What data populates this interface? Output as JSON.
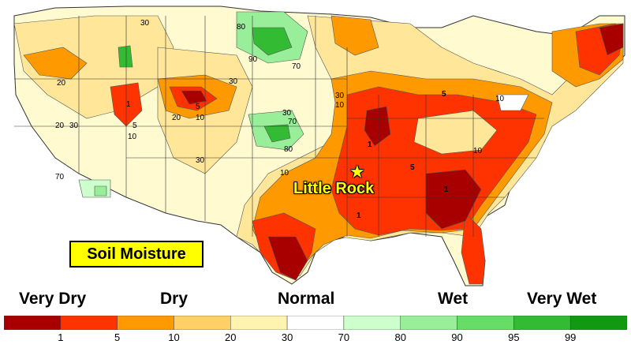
{
  "title": "Soil Moisture",
  "city": {
    "name": "Little Rock",
    "marker_icon": "star-icon"
  },
  "categories": [
    {
      "label": "Very Dry",
      "id": "very-dry"
    },
    {
      "label": "Dry",
      "id": "dry"
    },
    {
      "label": "Normal",
      "id": "normal"
    },
    {
      "label": "Wet",
      "id": "wet"
    },
    {
      "label": "Very Wet",
      "id": "very-wet"
    }
  ],
  "legend": {
    "colors": [
      "#a80000",
      "#ff3300",
      "#ff9900",
      "#ffd066",
      "#fff3b0",
      "#ffffff",
      "#ccffcc",
      "#99ee99",
      "#66dd66",
      "#33bb33",
      "#119911"
    ],
    "ticks": [
      "1",
      "5",
      "10",
      "20",
      "30",
      "70",
      "80",
      "90",
      "95",
      "99"
    ]
  },
  "contour_labels": [
    "30",
    "80",
    "90",
    "70",
    "20",
    "30",
    "20",
    "5",
    "30",
    "10",
    "20",
    "30",
    "5",
    "10",
    "30",
    "10",
    "70",
    "80",
    "70",
    "30",
    "10",
    "1",
    "5",
    "10",
    "10",
    "5",
    "1",
    "1",
    "1"
  ],
  "colors": {
    "very_dry": "#a80000",
    "extreme_dry": "#ff3300",
    "dry": "#ff9900",
    "slightly_dry": "#ffd066",
    "near_normal_dry": "#fff3b0",
    "wet": "#66dd66"
  }
}
